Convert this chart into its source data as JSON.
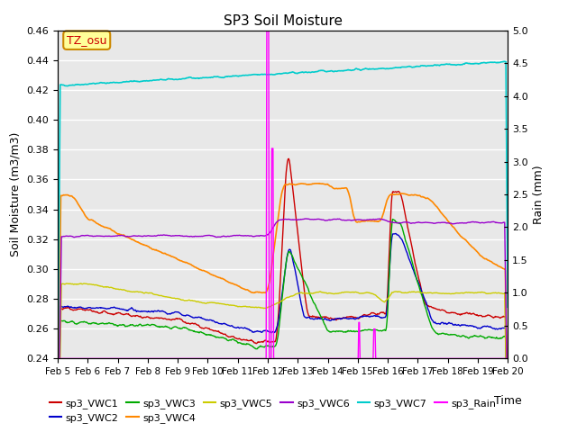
{
  "title": "SP3 Soil Moisture",
  "xlabel": "Time",
  "ylabel_left": "Soil Moisture (m3/m3)",
  "ylabel_right": "Rain (mm)",
  "ylim_left": [
    0.24,
    0.46
  ],
  "ylim_right": [
    0.0,
    5.0
  ],
  "xlim": [
    0,
    15
  ],
  "bg_color": "#e8e8e8",
  "annotation_text": "TZ_osu",
  "annotation_color": "#cc0000",
  "annotation_bg": "#ffff99",
  "annotation_border": "#cc8800",
  "xtick_labels": [
    "Feb 5",
    "Feb 6",
    "Feb 7",
    "Feb 8",
    "Feb 9",
    "Feb 10",
    "Feb 11",
    "Feb 12",
    "Feb 13",
    "Feb 14",
    "Feb 15",
    "Feb 16",
    "Feb 17",
    "Feb 18",
    "Feb 19",
    "Feb 20"
  ],
  "yticks_left": [
    0.24,
    0.26,
    0.28,
    0.3,
    0.32,
    0.34,
    0.36,
    0.38,
    0.4,
    0.42,
    0.44,
    0.46
  ],
  "yticks_right": [
    0.0,
    0.5,
    1.0,
    1.5,
    2.0,
    2.5,
    3.0,
    3.5,
    4.0,
    4.5,
    5.0
  ],
  "series_colors": {
    "sp3_VWC1": "#cc0000",
    "sp3_VWC2": "#0000cc",
    "sp3_VWC3": "#00aa00",
    "sp3_VWC4": "#ff8800",
    "sp3_VWC5": "#cccc00",
    "sp3_VWC6": "#9900cc",
    "sp3_VWC7": "#00cccc",
    "sp3_Rain": "#ff00ff"
  },
  "legend_order": [
    "sp3_VWC1",
    "sp3_VWC2",
    "sp3_VWC3",
    "sp3_VWC4",
    "sp3_VWC5",
    "sp3_VWC6",
    "sp3_VWC7",
    "sp3_Rain"
  ]
}
